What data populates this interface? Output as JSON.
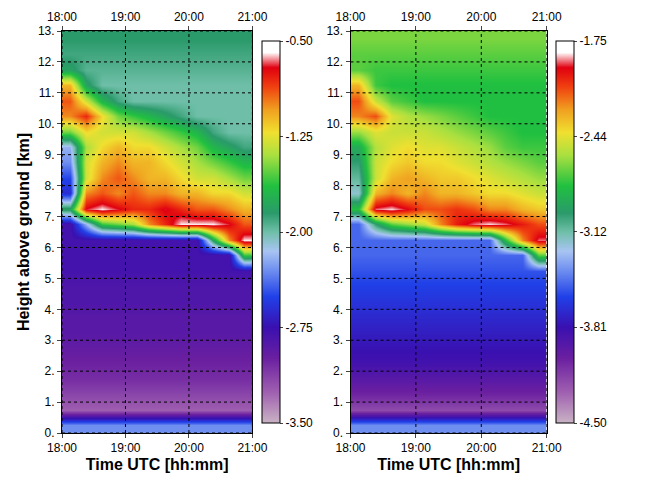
{
  "chart_data": [
    {
      "type": "heatmap",
      "x_label": "Time UTC [hh:mm]",
      "y_label": "Height above ground [km]",
      "x": [
        18.125,
        18.375,
        18.625,
        18.875,
        19.125,
        19.375,
        19.625,
        19.875,
        20.125,
        20.375,
        20.625,
        20.875
      ],
      "y": [
        0.25,
        0.75,
        1.25,
        1.75,
        2.25,
        2.75,
        3.25,
        3.75,
        4.25,
        4.75,
        5.25,
        5.75,
        6.25,
        6.75,
        7.25,
        7.75,
        8.25,
        8.75,
        9.25,
        9.75,
        10.25,
        10.75,
        11.25,
        11.75,
        12.25,
        12.75
      ],
      "z": [
        [
          -2.3,
          -2.3,
          -2.3,
          -2.3,
          -2.3,
          -2.3,
          -2.3,
          -2.3,
          -2.3,
          -2.3,
          -2.3,
          -2.3
        ],
        [
          -3.25,
          -3.25,
          -3.25,
          -3.25,
          -3.25,
          -3.25,
          -3.25,
          -3.25,
          -3.25,
          -3.25,
          -3.25,
          -3.25
        ],
        [
          -3.15,
          -3.15,
          -3.15,
          -3.15,
          -3.15,
          -3.15,
          -3.15,
          -3.15,
          -3.15,
          -3.15,
          -3.15,
          -3.15
        ],
        [
          -3.05,
          -3.05,
          -3.05,
          -3.05,
          -3.05,
          -3.05,
          -3.05,
          -3.05,
          -3.05,
          -3.05,
          -3.05,
          -3.05
        ],
        [
          -3.0,
          -3.0,
          -3.0,
          -3.0,
          -3.0,
          -3.0,
          -3.0,
          -3.0,
          -3.0,
          -3.0,
          -3.0,
          -3.0
        ],
        [
          -2.95,
          -2.95,
          -2.95,
          -2.95,
          -2.95,
          -2.95,
          -2.95,
          -2.95,
          -2.95,
          -2.95,
          -2.95,
          -2.95
        ],
        [
          -2.9,
          -2.9,
          -2.9,
          -2.9,
          -2.9,
          -2.9,
          -2.9,
          -2.9,
          -2.9,
          -2.9,
          -2.9,
          -2.9
        ],
        [
          -2.9,
          -2.9,
          -2.9,
          -2.9,
          -2.9,
          -2.9,
          -2.9,
          -2.9,
          -2.9,
          -2.9,
          -2.9,
          -2.9
        ],
        [
          -2.85,
          -2.85,
          -2.85,
          -2.85,
          -2.85,
          -2.85,
          -2.85,
          -2.85,
          -2.85,
          -2.85,
          -2.85,
          -2.85
        ],
        [
          -2.85,
          -2.85,
          -2.85,
          -2.85,
          -2.85,
          -2.85,
          -2.85,
          -2.85,
          -2.85,
          -2.85,
          -2.85,
          -2.85
        ],
        [
          -2.8,
          -2.8,
          -2.8,
          -2.8,
          -2.8,
          -2.8,
          -2.8,
          -2.8,
          -2.8,
          -2.8,
          -2.8,
          -2.8
        ],
        [
          -2.8,
          -2.8,
          -2.8,
          -2.8,
          -2.8,
          -2.8,
          -2.8,
          -2.8,
          -2.8,
          -2.8,
          -2.8,
          -1.6
        ],
        [
          -2.8,
          -2.8,
          -2.8,
          -2.8,
          -2.8,
          -2.8,
          -2.8,
          -2.8,
          -2.8,
          -1.8,
          -1.0,
          -0.6
        ],
        [
          -2.8,
          -2.2,
          -1.6,
          -1.5,
          -1.4,
          -1.0,
          -0.8,
          -0.6,
          -0.6,
          -0.6,
          -0.7,
          -0.9
        ],
        [
          -1.8,
          -0.7,
          -0.6,
          -0.7,
          -0.8,
          -0.8,
          -0.7,
          -0.8,
          -0.9,
          -0.9,
          -1.0,
          -1.1
        ],
        [
          -2.6,
          -1.0,
          -0.9,
          -1.0,
          -0.9,
          -1.0,
          -1.0,
          -1.1,
          -1.1,
          -1.2,
          -1.2,
          -1.3
        ],
        [
          -2.5,
          -1.3,
          -1.0,
          -0.9,
          -1.0,
          -1.1,
          -1.1,
          -1.2,
          -1.3,
          -1.3,
          -1.4,
          -1.5
        ],
        [
          -2.3,
          -1.3,
          -1.1,
          -1.0,
          -1.1,
          -1.1,
          -1.2,
          -1.3,
          -1.4,
          -1.5,
          -1.6,
          -1.7
        ],
        [
          -2.2,
          -1.4,
          -1.2,
          -1.1,
          -1.2,
          -1.2,
          -1.3,
          -1.4,
          -1.5,
          -1.7,
          -1.8,
          -1.9
        ],
        [
          -1.5,
          -1.2,
          -1.3,
          -1.3,
          -1.3,
          -1.4,
          -1.5,
          -1.6,
          -1.7,
          -1.9,
          -2.0,
          -2.0
        ],
        [
          -1.0,
          -0.8,
          -1.2,
          -1.5,
          -1.6,
          -1.7,
          -1.8,
          -1.9,
          -2.0,
          -2.0,
          -2.0,
          -2.0
        ],
        [
          -0.9,
          -1.3,
          -1.7,
          -1.9,
          -2.0,
          -2.0,
          -2.0,
          -2.0,
          -2.0,
          -2.0,
          -2.0,
          -2.0
        ],
        [
          -1.1,
          -1.8,
          -2.0,
          -2.0,
          -2.0,
          -2.0,
          -2.0,
          -2.0,
          -2.0,
          -2.0,
          -2.0,
          -2.0
        ],
        [
          -1.8,
          -1.95,
          -1.95,
          -1.95,
          -1.95,
          -1.95,
          -1.95,
          -1.95,
          -1.95,
          -1.95,
          -1.95,
          -1.95
        ],
        [
          -1.9,
          -1.9,
          -1.9,
          -1.9,
          -1.9,
          -1.9,
          -1.9,
          -1.9,
          -1.9,
          -1.9,
          -1.9,
          -1.9
        ],
        [
          -1.85,
          -1.85,
          -1.85,
          -1.85,
          -1.85,
          -1.85,
          -1.85,
          -1.85,
          -1.85,
          -1.85,
          -1.85,
          -1.85
        ]
      ],
      "zlim": [
        -3.5,
        -0.5
      ],
      "zticks": [
        {
          "value": -0.5,
          "label": "-0.50"
        },
        -1.25,
        {
          "value": -2,
          "label": "-2.00"
        },
        -2.75,
        {
          "value": -3.5,
          "label": "-3.50"
        }
      ],
      "xlim": [
        18,
        21
      ],
      "xticks": [
        {
          "value": 18,
          "label": "18:00"
        },
        {
          "value": 19,
          "label": "19:00"
        },
        {
          "value": 20,
          "label": "20:00"
        },
        {
          "value": 21,
          "label": "21:00"
        }
      ],
      "ylim": [
        0,
        13
      ],
      "yticks": [
        {
          "value": 0,
          "label": "0."
        },
        {
          "value": 1,
          "label": "1."
        },
        {
          "value": 2,
          "label": "2."
        },
        {
          "value": 3,
          "label": "3."
        },
        {
          "value": 4,
          "label": "4."
        },
        {
          "value": 5,
          "label": "5."
        },
        {
          "value": 6,
          "label": "6."
        },
        {
          "value": 7,
          "label": "7."
        },
        {
          "value": 8,
          "label": "8."
        },
        {
          "value": 9,
          "label": "9."
        },
        {
          "value": 10,
          "label": "10."
        },
        {
          "value": 11,
          "label": "11."
        },
        {
          "value": 12,
          "label": "12."
        },
        {
          "value": 13,
          "label": "13."
        }
      ],
      "grid": true
    },
    {
      "type": "heatmap",
      "x_label": "Time UTC [hh:mm]",
      "x": [
        18.125,
        18.375,
        18.625,
        18.875,
        19.125,
        19.375,
        19.625,
        19.875,
        20.125,
        20.375,
        20.625,
        20.875
      ],
      "y": [
        0.25,
        0.75,
        1.25,
        1.75,
        2.25,
        2.75,
        3.25,
        3.75,
        4.25,
        4.75,
        5.25,
        5.75,
        6.25,
        6.75,
        7.25,
        7.75,
        8.25,
        8.75,
        9.25,
        9.75,
        10.25,
        10.75,
        11.25,
        11.75,
        12.25,
        12.75
      ],
      "z": [
        [
          -3.4,
          -3.4,
          -3.4,
          -3.4,
          -3.4,
          -3.4,
          -3.4,
          -3.4,
          -3.4,
          -3.4,
          -3.4,
          -3.4
        ],
        [
          -4.2,
          -4.2,
          -4.2,
          -4.2,
          -4.2,
          -4.2,
          -4.2,
          -4.2,
          -4.2,
          -4.2,
          -4.2,
          -4.2
        ],
        [
          -4.05,
          -4.05,
          -4.05,
          -4.05,
          -4.05,
          -4.05,
          -4.05,
          -4.05,
          -4.05,
          -4.05,
          -4.05,
          -4.05
        ],
        [
          -3.95,
          -3.95,
          -3.95,
          -3.95,
          -3.95,
          -3.95,
          -3.95,
          -3.95,
          -3.95,
          -3.95,
          -3.95,
          -3.95
        ],
        [
          -3.85,
          -3.85,
          -3.85,
          -3.85,
          -3.85,
          -3.85,
          -3.85,
          -3.85,
          -3.85,
          -3.85,
          -3.85,
          -3.85
        ],
        [
          -3.8,
          -3.8,
          -3.8,
          -3.8,
          -3.8,
          -3.8,
          -3.8,
          -3.8,
          -3.8,
          -3.8,
          -3.8,
          -3.8
        ],
        [
          -3.75,
          -3.75,
          -3.75,
          -3.75,
          -3.75,
          -3.75,
          -3.75,
          -3.75,
          -3.75,
          -3.75,
          -3.75,
          -3.75
        ],
        [
          -3.7,
          -3.7,
          -3.7,
          -3.7,
          -3.7,
          -3.7,
          -3.7,
          -3.7,
          -3.7,
          -3.7,
          -3.7,
          -3.7
        ],
        [
          -3.65,
          -3.65,
          -3.65,
          -3.65,
          -3.65,
          -3.65,
          -3.65,
          -3.65,
          -3.65,
          -3.65,
          -3.65,
          -3.65
        ],
        [
          -3.6,
          -3.6,
          -3.6,
          -3.6,
          -3.6,
          -3.6,
          -3.6,
          -3.6,
          -3.6,
          -3.6,
          -3.6,
          -3.6
        ],
        [
          -3.55,
          -3.55,
          -3.55,
          -3.55,
          -3.55,
          -3.55,
          -3.55,
          -3.55,
          -3.55,
          -3.55,
          -3.55,
          -3.55
        ],
        [
          -3.5,
          -3.5,
          -3.5,
          -3.5,
          -3.5,
          -3.5,
          -3.5,
          -3.5,
          -3.5,
          -3.5,
          -3.5,
          -2.7
        ],
        [
          -3.5,
          -3.5,
          -3.5,
          -3.5,
          -3.5,
          -3.5,
          -3.5,
          -3.5,
          -3.5,
          -2.8,
          -2.2,
          -1.9
        ],
        [
          -3.5,
          -3.0,
          -2.7,
          -2.6,
          -2.5,
          -2.2,
          -2.0,
          -1.9,
          -1.85,
          -1.9,
          -2.0,
          -2.1
        ],
        [
          -2.8,
          -1.9,
          -1.85,
          -1.95,
          -2.1,
          -2.1,
          -2.05,
          -2.1,
          -2.2,
          -2.2,
          -2.3,
          -2.35
        ],
        [
          -3.2,
          -2.3,
          -2.2,
          -2.3,
          -2.2,
          -2.3,
          -2.3,
          -2.35,
          -2.4,
          -2.4,
          -2.45,
          -2.5
        ],
        [
          -3.1,
          -2.5,
          -2.3,
          -2.25,
          -2.3,
          -2.35,
          -2.35,
          -2.4,
          -2.45,
          -2.5,
          -2.55,
          -2.6
        ],
        [
          -3.0,
          -2.5,
          -2.4,
          -2.35,
          -2.4,
          -2.4,
          -2.45,
          -2.5,
          -2.55,
          -2.6,
          -2.65,
          -2.7
        ],
        [
          -2.9,
          -2.55,
          -2.45,
          -2.4,
          -2.45,
          -2.45,
          -2.5,
          -2.55,
          -2.6,
          -2.7,
          -2.75,
          -2.75
        ],
        [
          -2.6,
          -2.45,
          -2.5,
          -2.5,
          -2.5,
          -2.55,
          -2.6,
          -2.65,
          -2.7,
          -2.75,
          -2.8,
          -2.8
        ],
        [
          -2.2,
          -2.1,
          -2.45,
          -2.55,
          -2.6,
          -2.65,
          -2.7,
          -2.75,
          -2.8,
          -2.8,
          -2.8,
          -2.8
        ],
        [
          -2.1,
          -2.5,
          -2.7,
          -2.75,
          -2.8,
          -2.8,
          -2.8,
          -2.8,
          -2.8,
          -2.8,
          -2.8,
          -2.8
        ],
        [
          -2.3,
          -2.75,
          -2.8,
          -2.8,
          -2.8,
          -2.8,
          -2.8,
          -2.8,
          -2.8,
          -2.8,
          -2.8,
          -2.8
        ],
        [
          -2.7,
          -2.75,
          -2.75,
          -2.75,
          -2.75,
          -2.75,
          -2.75,
          -2.75,
          -2.75,
          -2.75,
          -2.75,
          -2.75
        ],
        [
          -2.7,
          -2.7,
          -2.7,
          -2.7,
          -2.7,
          -2.7,
          -2.7,
          -2.7,
          -2.7,
          -2.7,
          -2.7,
          -2.7
        ],
        [
          -2.65,
          -2.65,
          -2.65,
          -2.65,
          -2.65,
          -2.65,
          -2.65,
          -2.65,
          -2.65,
          -2.65,
          -2.65,
          -2.65
        ]
      ],
      "zlim": [
        -4.5,
        -1.75
      ],
      "zticks": [
        -1.75,
        -2.44,
        -3.12,
        -3.81,
        {
          "value": -4.5,
          "label": "-4.50"
        }
      ],
      "xlim": [
        18,
        21
      ],
      "xticks": [
        {
          "value": 18,
          "label": "18:00"
        },
        {
          "value": 19,
          "label": "19:00"
        },
        {
          "value": 20,
          "label": "20:00"
        },
        {
          "value": 21,
          "label": "21:00"
        }
      ],
      "ylim": [
        0,
        13
      ],
      "yticks": [
        {
          "value": 0,
          "label": "0."
        },
        {
          "value": 1,
          "label": "1."
        },
        {
          "value": 2,
          "label": "2."
        },
        {
          "value": 3,
          "label": "3."
        },
        {
          "value": 4,
          "label": "4."
        },
        {
          "value": 5,
          "label": "5."
        },
        {
          "value": 6,
          "label": "6."
        },
        {
          "value": 7,
          "label": "7."
        },
        {
          "value": 8,
          "label": "8."
        },
        {
          "value": 9,
          "label": "9."
        },
        {
          "value": 10,
          "label": "10."
        },
        {
          "value": 11,
          "label": "11."
        },
        {
          "value": 12,
          "label": "12."
        },
        {
          "value": 13,
          "label": "13."
        }
      ],
      "grid": true
    }
  ]
}
